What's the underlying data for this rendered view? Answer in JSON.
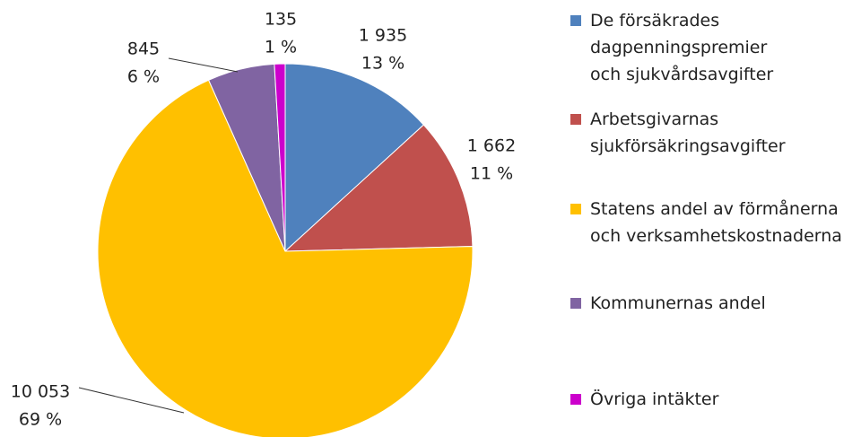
{
  "chart_data": {
    "type": "pie",
    "categories": [
      "De försäkrades dagpenningspremier och sjukvårdsavgifter",
      "Arbetsgivarnas sjukförsäkringsavgifter",
      "Statens andel av förmånerna och verksamhetskostnaderna",
      "Kommunernas andel",
      "Övriga intäkter"
    ],
    "values": [
      1935,
      1662,
      10053,
      845,
      135
    ],
    "value_labels": [
      "1 935",
      "1 662",
      "10 053",
      "845",
      "135"
    ],
    "percent_labels": [
      "13 %",
      "11 %",
      "69 %",
      "6 %",
      "1 %"
    ],
    "colors": [
      "#4f81bd",
      "#c0504d",
      "#ffc000",
      "#8064a2",
      "#cc00cc"
    ]
  }
}
